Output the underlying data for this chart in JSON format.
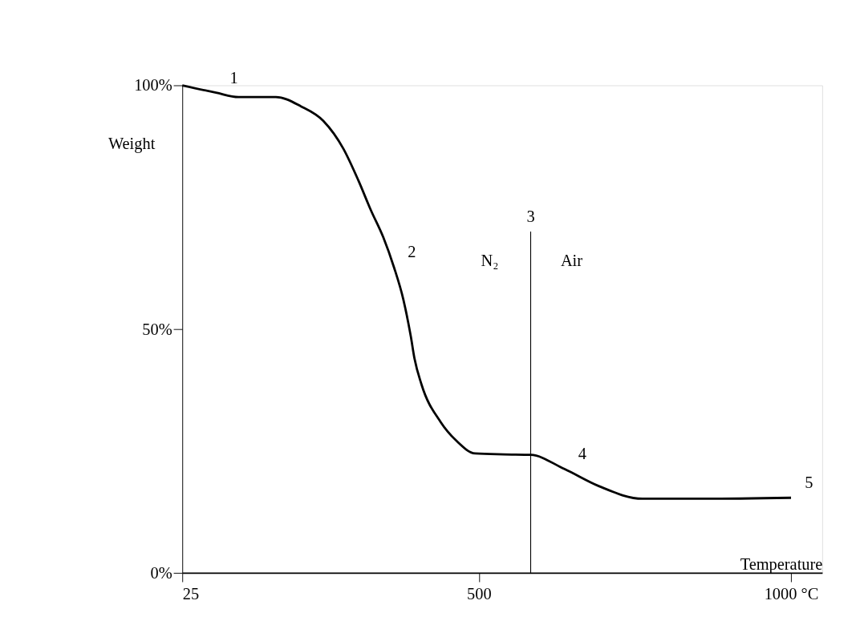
{
  "chart_data": {
    "type": "line",
    "xlabel": "Temperature",
    "ylabel": "Weight",
    "x": [
      25,
      79,
      115,
      175,
      215,
      251,
      283,
      307,
      327,
      347,
      364,
      379,
      391,
      397,
      408,
      439,
      464,
      494,
      540,
      583,
      637,
      692,
      762,
      861,
      1000
    ],
    "series": [
      {
        "color": "#000000",
        "values": [
          100,
          98.5,
          97.6,
          97.6,
          95.7,
          92.7,
          87.0,
          80.5,
          74.4,
          68.8,
          62.7,
          56.1,
          48.5,
          43.9,
          38.7,
          30.9,
          27.1,
          24.5,
          24.3,
          24.2,
          21.3,
          17.8,
          15.2,
          15.2,
          15.4
        ]
      }
    ],
    "xlim": [
      25,
      1050
    ],
    "ylim": [
      0,
      100
    ],
    "xticks": [
      25,
      500,
      {
        "value": 1000,
        "label": "1000 °C"
      }
    ],
    "yticks": [
      {
        "value": 0,
        "label": "0%"
      },
      {
        "value": 50,
        "label": "50%"
      },
      {
        "value": 100,
        "label": "100%"
      }
    ],
    "ref_lines": [
      {
        "axis": "x",
        "value": 583,
        "color": "#000000"
      }
    ],
    "annotations": [
      {
        "text": "1",
        "x": 79,
        "y": 98.5
      },
      {
        "text": "2",
        "x": 364,
        "y": 62.7
      },
      "N₂",
      "3",
      "Air",
      {
        "text": "4",
        "x": 637,
        "y": 21.3
      },
      {
        "text": "5",
        "x": 1000,
        "y": 15.4
      }
    ],
    "grid": false,
    "marker": "none",
    "line_style": "solid"
  }
}
